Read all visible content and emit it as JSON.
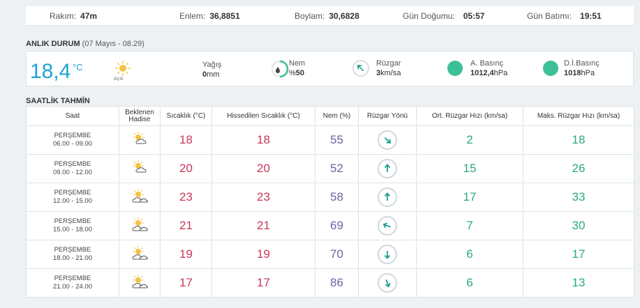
{
  "info": {
    "rakim_label": "Rakım:",
    "rakim_value": "47m",
    "enlem_label": "Enlem:",
    "enlem_value": "36,8851",
    "boylam_label": "Boylam:",
    "boylam_value": "30,6828",
    "gundogumu_label": "Gün Doğumu:",
    "gundogumu_value": "05:57",
    "gunbatimi_label": "Gün Batımı:",
    "gunbatimi_value": "19:51"
  },
  "current": {
    "title": "ANLIK DURUM",
    "subtitle": "(07 Mayıs - 08.29)",
    "temp": "18,4",
    "unit": "°C",
    "condition": "Açık",
    "yagis_label": "Yağış",
    "yagis_value": "0",
    "yagis_unit": "mm",
    "nem_label": "Nem",
    "nem_prefix": "%",
    "nem_value": "50",
    "ruzgar_label": "Rüzgar",
    "ruzgar_value": "3",
    "ruzgar_unit": "km/sa",
    "abasinc_label": "A. Basınç",
    "abasinc_value": "1012,4",
    "abasinc_unit": "hPa",
    "dibasinc_label": "D.İ.Basınç",
    "dibasinc_value": "1018",
    "dibasinc_unit": "hPa"
  },
  "hourly": {
    "title": "SAATLİK TAHMİN",
    "headers": {
      "saat": "Saat",
      "hadise_1": "Beklenen",
      "hadise_2": "Hadise",
      "sicaklik": "Sıcaklık (°C)",
      "hissedilen": "Hissedilen Sıcaklık (°C)",
      "nem": "Nem (%)",
      "yon": "Rüzgar Yönü",
      "ort": "Ort. Rüzgar Hızı (km/sa)",
      "maks": "Maks. Rüzgar Hızı (km/sa)"
    },
    "rows": [
      {
        "day": "PERŞEMBE",
        "range": "06.00 - 09.00",
        "icon": "partly-sunny-icon",
        "temp": "18",
        "feels": "18",
        "hum": "55",
        "wind_dir": "southeast",
        "wind_deg": 135,
        "avg": "2",
        "max": "18"
      },
      {
        "day": "PERŞEMBE",
        "range": "09.00 - 12.00",
        "icon": "partly-sunny-icon",
        "temp": "20",
        "feels": "20",
        "hum": "52",
        "wind_dir": "north",
        "wind_deg": 0,
        "avg": "15",
        "max": "26"
      },
      {
        "day": "PERŞEMBE",
        "range": "12.00 - 15.00",
        "icon": "partly-cloudy-icon",
        "temp": "23",
        "feels": "23",
        "hum": "58",
        "wind_dir": "north",
        "wind_deg": 0,
        "avg": "17",
        "max": "33"
      },
      {
        "day": "PERŞEMBE",
        "range": "15.00 - 18.00",
        "icon": "partly-cloudy-icon",
        "temp": "21",
        "feels": "21",
        "hum": "69",
        "wind_dir": "northwest",
        "wind_deg": 290,
        "avg": "7",
        "max": "30"
      },
      {
        "day": "PERŞEMBE",
        "range": "18.00 - 21.00",
        "icon": "partly-cloudy-icon",
        "temp": "19",
        "feels": "19",
        "hum": "70",
        "wind_dir": "south",
        "wind_deg": 180,
        "avg": "6",
        "max": "17"
      },
      {
        "day": "PERŞEMBE",
        "range": "21.00 - 24.00",
        "icon": "partly-cloudy-icon",
        "temp": "17",
        "feels": "17",
        "hum": "86",
        "wind_dir": "south-southeast",
        "wind_deg": 160,
        "avg": "6",
        "max": "13"
      }
    ]
  },
  "colors": {
    "temp_blue": "#1ea3d6",
    "temp_red": "#c8375a",
    "humidity_purple": "#6c63a3",
    "wind_green": "#2aa882",
    "arrow_teal": "#1a9e8c",
    "pressure_green": "#3dbf9a",
    "sun_yellow": "#f5c242"
  }
}
